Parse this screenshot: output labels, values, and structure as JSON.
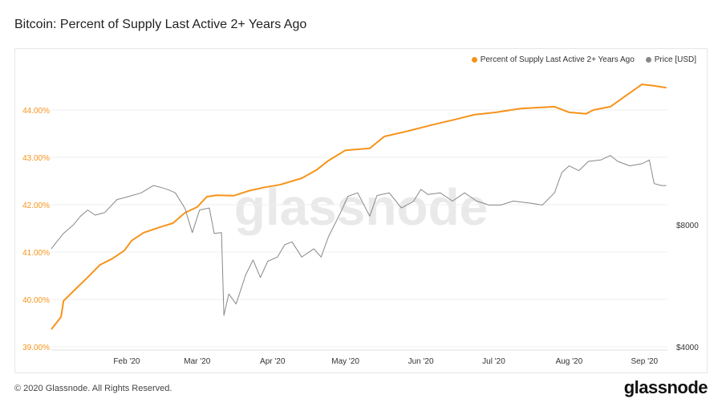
{
  "header": {
    "title": "Bitcoin: Percent of Supply Last Active 2+ Years Ago"
  },
  "footer": {
    "copyright": "© 2020 Glassnode. All Rights Reserved.",
    "logo": "glassnode"
  },
  "watermark": "glassnode",
  "chart_data": {
    "type": "line",
    "title": "Bitcoin: Percent of Supply Last Active 2+ Years Ago",
    "x_unit": "days since 2020-01-01",
    "legend_position": "top-right",
    "x_ticks": [
      {
        "label": "Feb '20",
        "day": 31
      },
      {
        "label": "Mar '20",
        "day": 60
      },
      {
        "label": "Apr '20",
        "day": 91
      },
      {
        "label": "May '20",
        "day": 121
      },
      {
        "label": "Jun '20",
        "day": 152
      },
      {
        "label": "Jul '20",
        "day": 182
      },
      {
        "label": "Aug '20",
        "day": 213
      },
      {
        "label": "Sep '20",
        "day": 244
      }
    ],
    "left_axis": {
      "ylim": [
        39,
        44.6
      ],
      "ticks": [
        {
          "v": 39,
          "label": "39.00%"
        },
        {
          "v": 40,
          "label": "40.00%"
        },
        {
          "v": 41,
          "label": "41.00%"
        },
        {
          "v": 42,
          "label": "42.00%"
        },
        {
          "v": 43,
          "label": "43.00%"
        },
        {
          "v": 44,
          "label": "44.00%"
        }
      ]
    },
    "right_axis": {
      "scale": "log",
      "ticks": [
        {
          "v": 4000,
          "label": "$4000"
        },
        {
          "v": 8000,
          "label": "$8000"
        }
      ]
    },
    "series": [
      {
        "name": "Percent of Supply Last Active 2+ Years Ago",
        "color": "#f7931a",
        "axis": "left",
        "points": [
          [
            0,
            39.37
          ],
          [
            4,
            39.63
          ],
          [
            5,
            39.97
          ],
          [
            10,
            40.22
          ],
          [
            15,
            40.47
          ],
          [
            20,
            40.73
          ],
          [
            25,
            40.86
          ],
          [
            30,
            41.03
          ],
          [
            33,
            41.24
          ],
          [
            38,
            41.41
          ],
          [
            45,
            41.53
          ],
          [
            50,
            41.61
          ],
          [
            55,
            41.83
          ],
          [
            60,
            41.95
          ],
          [
            64,
            42.17
          ],
          [
            68,
            42.2
          ],
          [
            75,
            42.19
          ],
          [
            81,
            42.29
          ],
          [
            88,
            42.37
          ],
          [
            94,
            42.42
          ],
          [
            103,
            42.56
          ],
          [
            109,
            42.73
          ],
          [
            114,
            42.93
          ],
          [
            121,
            43.15
          ],
          [
            131,
            43.19
          ],
          [
            137,
            43.44
          ],
          [
            147,
            43.56
          ],
          [
            157,
            43.69
          ],
          [
            167,
            43.81
          ],
          [
            174,
            43.9
          ],
          [
            183,
            43.95
          ],
          [
            193,
            44.03
          ],
          [
            207,
            44.07
          ],
          [
            213,
            43.95
          ],
          [
            220,
            43.92
          ],
          [
            223,
            44.0
          ],
          [
            230,
            44.07
          ],
          [
            236,
            44.29
          ],
          [
            243,
            44.54
          ],
          [
            248,
            44.51
          ],
          [
            253,
            44.47
          ]
        ]
      },
      {
        "name": "Price [USD]",
        "color": "#888888",
        "axis": "right",
        "points": [
          [
            0,
            6980
          ],
          [
            2,
            7240
          ],
          [
            5,
            7620
          ],
          [
            9,
            7990
          ],
          [
            12,
            8400
          ],
          [
            15,
            8700
          ],
          [
            18,
            8450
          ],
          [
            22,
            8580
          ],
          [
            27,
            9230
          ],
          [
            32,
            9400
          ],
          [
            37,
            9590
          ],
          [
            42,
            10000
          ],
          [
            45,
            9900
          ],
          [
            48,
            9770
          ],
          [
            51,
            9590
          ],
          [
            55,
            8780
          ],
          [
            58,
            7650
          ],
          [
            61,
            8700
          ],
          [
            65,
            8800
          ],
          [
            67,
            7620
          ],
          [
            70,
            7650
          ],
          [
            71,
            4780
          ],
          [
            73,
            5400
          ],
          [
            76,
            5100
          ],
          [
            80,
            6030
          ],
          [
            83,
            6550
          ],
          [
            86,
            5930
          ],
          [
            89,
            6500
          ],
          [
            93,
            6660
          ],
          [
            96,
            7140
          ],
          [
            99,
            7260
          ],
          [
            103,
            6660
          ],
          [
            108,
            6980
          ],
          [
            111,
            6660
          ],
          [
            114,
            7470
          ],
          [
            119,
            8580
          ],
          [
            122,
            9400
          ],
          [
            126,
            9590
          ],
          [
            131,
            8400
          ],
          [
            134,
            9450
          ],
          [
            139,
            9590
          ],
          [
            144,
            8800
          ],
          [
            149,
            9140
          ],
          [
            152,
            9780
          ],
          [
            155,
            9500
          ],
          [
            160,
            9590
          ],
          [
            165,
            9150
          ],
          [
            170,
            9590
          ],
          [
            175,
            9150
          ],
          [
            180,
            8950
          ],
          [
            185,
            8950
          ],
          [
            190,
            9150
          ],
          [
            197,
            9050
          ],
          [
            202,
            8950
          ],
          [
            207,
            9590
          ],
          [
            210,
            10760
          ],
          [
            213,
            11180
          ],
          [
            217,
            10880
          ],
          [
            221,
            11470
          ],
          [
            226,
            11560
          ],
          [
            230,
            11860
          ],
          [
            233,
            11470
          ],
          [
            238,
            11180
          ],
          [
            243,
            11320
          ],
          [
            246,
            11560
          ],
          [
            248,
            10110
          ],
          [
            251,
            10000
          ],
          [
            253,
            10000
          ]
        ]
      }
    ]
  }
}
